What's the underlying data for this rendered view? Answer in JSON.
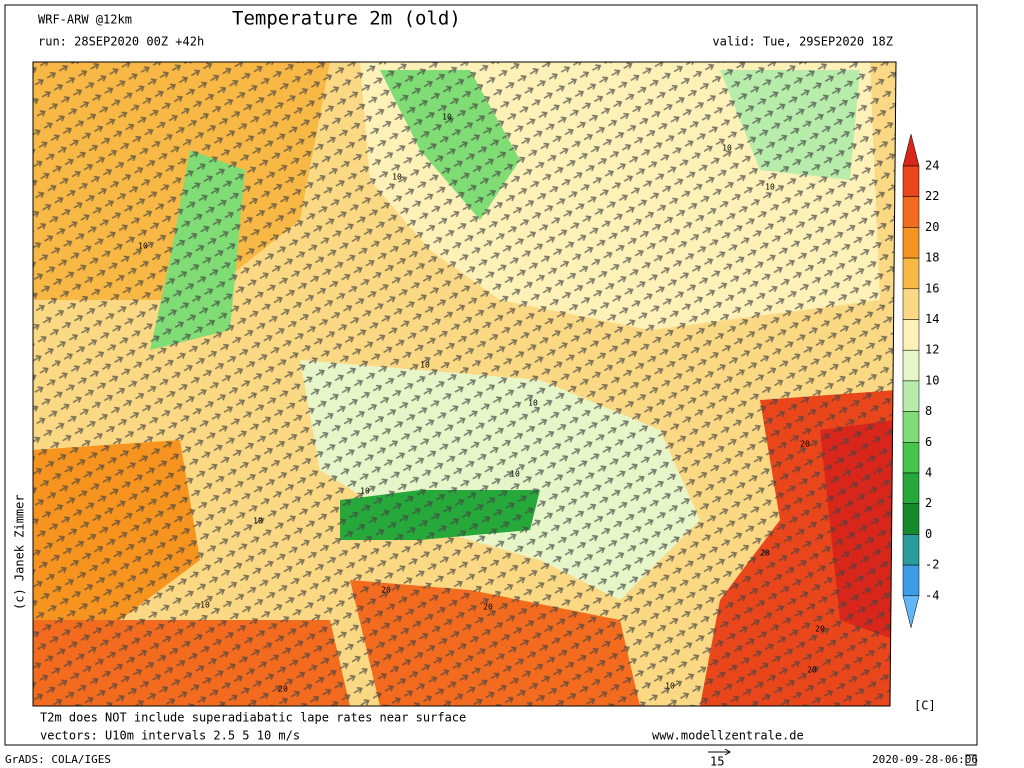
{
  "header": {
    "model": "WRF-ARW @12km",
    "title": "Temperature 2m (old)",
    "run": "run: 28SEP2020 00Z +42h",
    "valid": "valid: Tue, 29SEP2020 18Z"
  },
  "credit": "(c) Janek Zimmer",
  "colorbar": {
    "levels": [
      24,
      22,
      20,
      18,
      16,
      14,
      12,
      10,
      8,
      6,
      4,
      2,
      0,
      -2,
      -4
    ],
    "colors": [
      "#d8261a",
      "#e9461c",
      "#f26b1f",
      "#f6941f",
      "#f8b845",
      "#fbd984",
      "#fdf1b8",
      "#e6f6c8",
      "#b8ecaa",
      "#80dc74",
      "#47c449",
      "#26a83a",
      "#148a2c",
      "#2a9c9c",
      "#3c9ce6",
      "#60b6f6"
    ],
    "unit": "[C]"
  },
  "map": {
    "contour_labels": [
      10,
      10,
      10,
      10,
      10,
      10,
      10,
      10,
      10,
      10,
      10,
      10,
      20,
      20,
      20,
      20,
      20,
      20,
      20
    ]
  },
  "footer": {
    "note": "T2m does NOT include superadiabatic lape rates near surface",
    "vectors": "vectors: U10m intervals 2.5 5 10 m/s",
    "site": "www.modellzentrale.de",
    "grads": "GrADS: COLA/IGES",
    "ref_vector": "15",
    "timestamp": "2020-09-28-06:06"
  }
}
